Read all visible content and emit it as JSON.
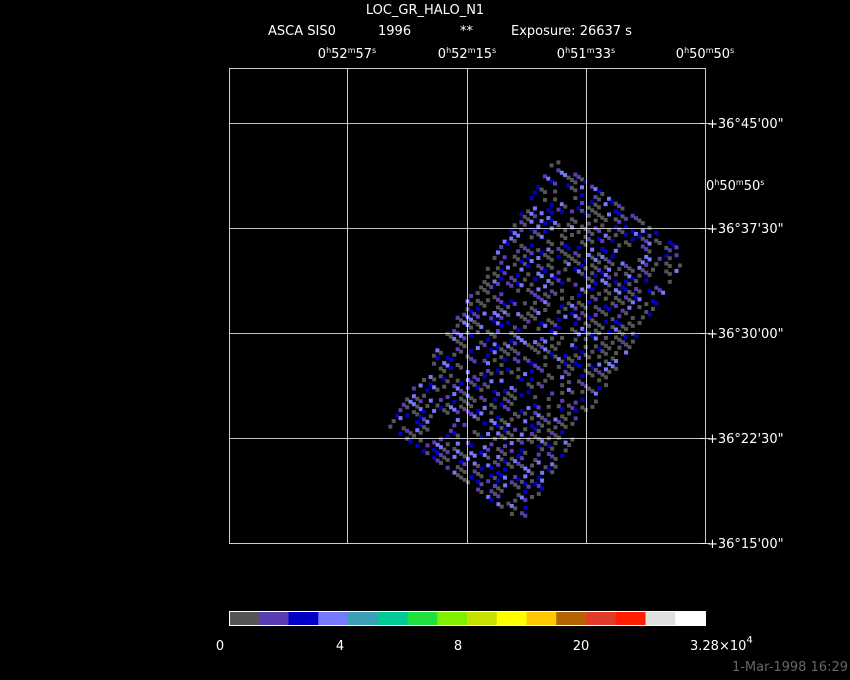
{
  "title": "LOC_GR_HALO_N1",
  "subtitle": {
    "instrument": "ASCA SIS0",
    "year": "1996",
    "marker": "**",
    "exposure": "Exposure: 26637 s"
  },
  "ra_labels": [
    [
      "0",
      "h",
      "52",
      "m",
      "57",
      "s"
    ],
    [
      "0",
      "h",
      "52",
      "m",
      "15",
      "s"
    ],
    [
      "0",
      "h",
      "51",
      "m",
      "33",
      "s"
    ],
    [
      "0",
      "h",
      "50",
      "m",
      "50",
      "s"
    ]
  ],
  "ra_side_label": [
    "0",
    "h",
    "50",
    "m",
    "50",
    "s"
  ],
  "dec_labels": [
    "+36°45'00\"",
    "+36°37'30\"",
    "+36°30'00\"",
    "+36°22'30\"",
    "+36°15'00\""
  ],
  "colorbar": {
    "colors": [
      "#555555",
      "#5a3cb4",
      "#0000c8",
      "#7878ff",
      "#3ca0b4",
      "#00c896",
      "#20e040",
      "#80f000",
      "#c8e000",
      "#ffff00",
      "#ffc800",
      "#b46400",
      "#e03c28",
      "#ff1e00",
      "#e0e0e0",
      "#ffffff"
    ],
    "labels": [
      "0",
      "4",
      "8",
      "20"
    ],
    "max_label": [
      "3.28×10",
      "4"
    ]
  },
  "timestamp": "1-Mar-1998 16:29"
}
